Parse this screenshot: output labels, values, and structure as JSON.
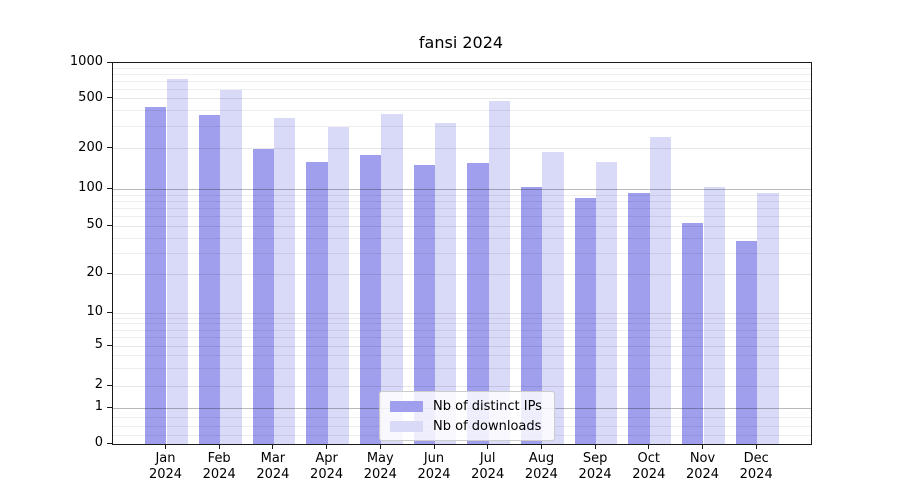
{
  "chart_data": {
    "type": "bar",
    "title": "fansi 2024",
    "categories": [
      "Jan 2024",
      "Feb 2024",
      "Mar 2024",
      "Apr 2024",
      "May 2024",
      "Jun 2024",
      "Jul 2024",
      "Aug 2024",
      "Sep 2024",
      "Oct 2024",
      "Nov 2024",
      "Dec 2024"
    ],
    "month_labels": [
      "Jan",
      "Feb",
      "Mar",
      "Apr",
      "May",
      "Jun",
      "Jul",
      "Aug",
      "Sep",
      "Oct",
      "Nov",
      "Dec"
    ],
    "year_label": "2024",
    "series": [
      {
        "name": "Nb of distinct IPs",
        "color": "#9f9fed",
        "values": [
          430,
          370,
          200,
          160,
          180,
          152,
          158,
          105,
          86,
          94,
          53,
          38
        ]
      },
      {
        "name": "Nb of downloads",
        "color": "#d9d9f8",
        "values": [
          740,
          590,
          350,
          300,
          375,
          320,
          480,
          190,
          160,
          250,
          105,
          94
        ]
      }
    ],
    "yscale": "asinh",
    "ylim": [
      0,
      1000
    ],
    "yticks": [
      0,
      1,
      2,
      5,
      10,
      20,
      50,
      100,
      200,
      500,
      1000
    ],
    "ytick_labels": [
      "0",
      "1",
      "2",
      "5",
      "10",
      "20",
      "50",
      "100",
      "200",
      "500",
      "1000"
    ],
    "dark_gridline_values": [
      1,
      100
    ],
    "grid": true,
    "legend_position": "lower center"
  },
  "colors": {
    "background": "#ffffff",
    "spine": "#1a1a1a",
    "grid_minor": "rgba(0,0,0,0.065)",
    "grid_labeled": "rgba(0,0,0,0.095)",
    "grid_major": "rgba(0,0,0,0.27)"
  }
}
